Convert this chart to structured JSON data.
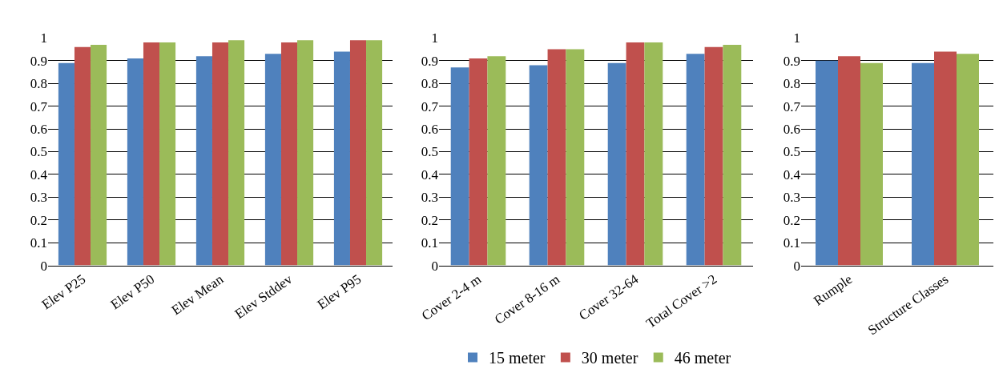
{
  "chart_data": [
    {
      "type": "bar",
      "categories": [
        "Elev P25",
        "Elev P50",
        "Elev Mean",
        "Elev Stddev",
        "Elev P95"
      ],
      "series": [
        {
          "name": "15 meter",
          "color": "#4f81bd",
          "values": [
            0.89,
            0.91,
            0.92,
            0.93,
            0.94
          ]
        },
        {
          "name": "30 meter",
          "color": "#c0504d",
          "values": [
            0.96,
            0.98,
            0.98,
            0.98,
            0.99
          ]
        },
        {
          "name": "46 meter",
          "color": "#9bbb59",
          "values": [
            0.97,
            0.98,
            0.99,
            0.99,
            0.99
          ]
        }
      ],
      "ylim": [
        0,
        1
      ],
      "yticks": [
        0,
        0.1,
        0.2,
        0.3,
        0.4,
        0.5,
        0.6,
        0.7,
        0.8,
        0.9,
        1
      ],
      "grid": "y",
      "legend": "bottom"
    },
    {
      "type": "bar",
      "categories": [
        "Cover 2-4 m",
        "Cover 8-16 m",
        "Cover 32-64",
        "Total Cover >2"
      ],
      "series": [
        {
          "color": "#4f81bd",
          "values": [
            0.87,
            0.88,
            0.89,
            0.93
          ]
        },
        {
          "color": "#c0504d",
          "values": [
            0.91,
            0.95,
            0.98,
            0.96
          ]
        },
        {
          "color": "#9bbb59",
          "values": [
            0.92,
            0.95,
            0.98,
            0.97
          ]
        }
      ],
      "ylim": [
        0,
        1
      ],
      "yticks": [
        0,
        0.1,
        0.2,
        0.3,
        0.4,
        0.5,
        0.6,
        0.7,
        0.8,
        0.9,
        1
      ],
      "grid": "y"
    },
    {
      "type": "bar",
      "categories": [
        "Rumple",
        "Structure Classes"
      ],
      "series": [
        {
          "color": "#4f81bd",
          "values": [
            0.9,
            0.89
          ]
        },
        {
          "color": "#c0504d",
          "values": [
            0.92,
            0.94
          ]
        },
        {
          "color": "#9bbb59",
          "values": [
            0.89,
            0.93
          ]
        }
      ],
      "ylim": [
        0,
        1
      ],
      "yticks": [
        0,
        0.1,
        0.2,
        0.3,
        0.4,
        0.5,
        0.6,
        0.7,
        0.8,
        0.9,
        1
      ],
      "grid": "y"
    }
  ]
}
